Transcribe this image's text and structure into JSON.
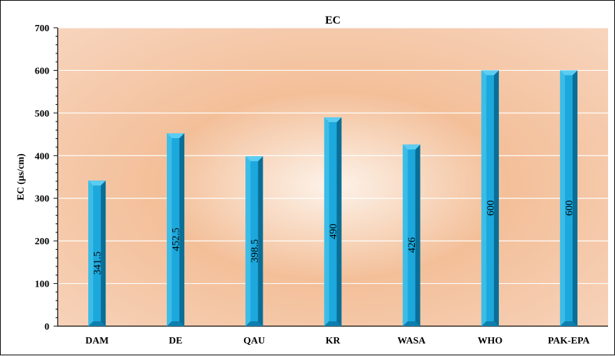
{
  "chart_data": {
    "type": "bar",
    "title": "EC",
    "xlabel": "",
    "ylabel": "EC (µs/cm)",
    "categories": [
      "DAM",
      "DE",
      "QAU",
      "KR",
      "WASA",
      "WHO",
      "PAK-EPA"
    ],
    "values": [
      341.5,
      452.5,
      398.5,
      490,
      426,
      600,
      600
    ],
    "data_labels": [
      "341.5",
      "452.5",
      "398.5",
      "490",
      "426",
      "600",
      "600"
    ],
    "ylim": [
      0,
      700
    ],
    "yticks": [
      "0",
      "100",
      "200",
      "300",
      "400",
      "500",
      "600",
      "700"
    ],
    "grid": true,
    "legend": "none",
    "colors": {
      "bar_front": "#1ca8dc",
      "bar_side": "#0a6e96",
      "bar_top": "#5ccdf2",
      "plot_bg_center": "#fdf3ea",
      "plot_bg_mid": "#f3bf99",
      "plot_bg_edge": "#f7d3bb"
    }
  }
}
